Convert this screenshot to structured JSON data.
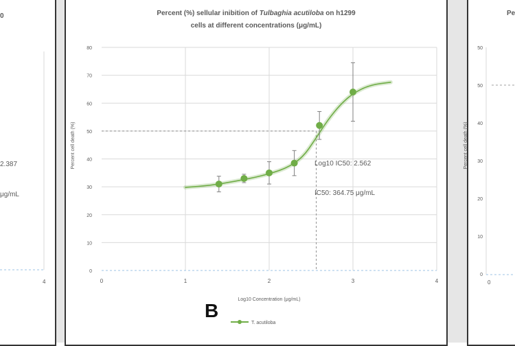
{
  "colors": {
    "series": "#70ad47",
    "grid": "#d9d9d9",
    "text": "#595959",
    "frame": "#333333",
    "gap": "#e6e6e6"
  },
  "left_panel": {
    "title_fragment": "0",
    "value_fragment_1": "2.387",
    "value_fragment_2": "μg/mL",
    "x_tick_4": "4"
  },
  "right_panel": {
    "title_fragment": "Pe",
    "y_ticks": [
      "50",
      "40",
      "30",
      "20",
      "10",
      "0"
    ],
    "ylabel": "Percent cell death (%)",
    "x_tick_0": "0"
  },
  "panel_letter": "B",
  "chart_data": {
    "type": "line",
    "title_prefix": "Percent (%) sellular inibition of ",
    "title_italic": "Tulbaghia acutiloba",
    "title_suffix": " on h1299",
    "title_line2": "cells at different concentrations (μg/mL)",
    "xlabel": "Log10 Concentration (μg/mL)",
    "ylabel": "Percent cell death (%)",
    "xlim": [
      0,
      4
    ],
    "ylim": [
      0,
      80
    ],
    "x_ticks": [
      "0",
      "1",
      "2",
      "3",
      "4"
    ],
    "y_ticks": [
      "0",
      "10",
      "20",
      "30",
      "40",
      "50",
      "60",
      "70",
      "80"
    ],
    "grid": true,
    "legend": {
      "position": "bottom",
      "label": "T. acutiloba"
    },
    "series": [
      {
        "name": "T. acutiloba",
        "points": [
          {
            "x": 1.4,
            "y": 31.0,
            "err": 2.8
          },
          {
            "x": 1.7,
            "y": 33.0,
            "err": 1.5
          },
          {
            "x": 2.0,
            "y": 35.0,
            "err": 4.0
          },
          {
            "x": 2.3,
            "y": 38.5,
            "err": 4.5
          },
          {
            "x": 2.6,
            "y": 52.0,
            "err": 5.0
          },
          {
            "x": 3.0,
            "y": 64.0,
            "err": 10.5
          }
        ],
        "fit": [
          [
            1.0,
            29.8
          ],
          [
            1.3,
            30.5
          ],
          [
            1.6,
            32.0
          ],
          [
            1.9,
            33.8
          ],
          [
            2.2,
            36.5
          ],
          [
            2.4,
            40.5
          ],
          [
            2.55,
            47.0
          ],
          [
            2.7,
            54.0
          ],
          [
            2.85,
            59.5
          ],
          [
            3.0,
            63.5
          ],
          [
            3.2,
            66.5
          ],
          [
            3.45,
            67.5
          ]
        ]
      }
    ],
    "reference": {
      "y": 50,
      "x": 2.562
    },
    "annotations": [
      "Log10 IC50: 2.562",
      "IC50: 364.75 μg/mL"
    ]
  }
}
